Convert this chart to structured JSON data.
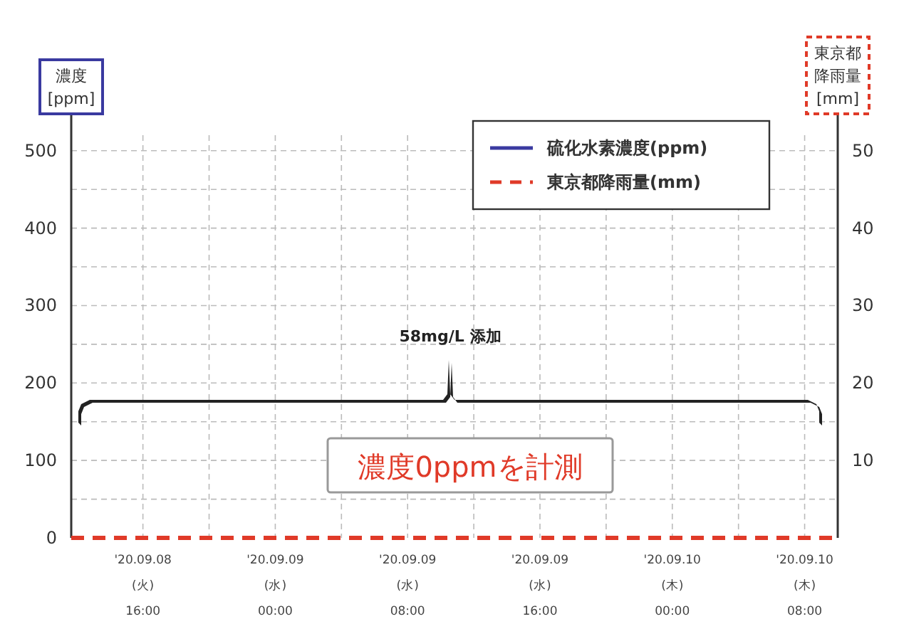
{
  "chart_data": {
    "type": "line",
    "ylabel": "濃度[ppm]",
    "y2label": "東京都降雨量[mm]",
    "x": [
      "2020-09-08T11:40",
      "2020-09-09T00:00",
      "2020-09-09T16:00",
      "2020-09-10T10:00"
    ],
    "series": [
      {
        "name": "硫化水素濃度(ppm)",
        "color": "#3a3aa0",
        "values": [
          null,
          null,
          null,
          null
        ],
        "line_style": "solid"
      },
      {
        "name": "東京都降雨量(mm)",
        "color": "#e03a28",
        "values": [
          0,
          0,
          0,
          0
        ],
        "axis": "y2",
        "line_style": "dashed"
      }
    ],
    "xlim": [
      "2020-09-08T11:40",
      "2020-09-10T10:00"
    ],
    "xticks": [
      {
        "value": "2020-09-08T16:00",
        "label": "'20.09.08\n(火)\n16:00"
      },
      {
        "value": "2020-09-08T20:00",
        "label": null
      },
      {
        "value": "2020-09-09T00:00",
        "label": "'20.09.09\n(水)\n00:00"
      },
      {
        "value": "2020-09-09T04:00",
        "label": null
      },
      {
        "value": "2020-09-09T08:00",
        "label": "'20.09.09\n(水)\n08:00"
      },
      {
        "value": "2020-09-09T12:00",
        "label": null
      },
      {
        "value": "2020-09-09T16:00",
        "label": "'20.09.09\n(水)\n16:00"
      },
      {
        "value": "2020-09-09T20:00",
        "label": null
      },
      {
        "value": "2020-09-10T00:00",
        "label": "'20.09.10\n(木)\n00:00"
      },
      {
        "value": "2020-09-10T04:00",
        "label": null
      },
      {
        "value": "2020-09-10T08:00",
        "label": "'20.09.10\n(木)\n08:00"
      }
    ],
    "ylim": [
      0,
      520
    ],
    "yticks": [
      0,
      {
        "value": 50,
        "label": null
      },
      100,
      {
        "value": 150,
        "label": null
      },
      200,
      {
        "value": 250,
        "label": null
      },
      300,
      {
        "value": 350,
        "label": null
      },
      400,
      {
        "value": 450,
        "label": null
      },
      500
    ],
    "y2lim": [
      0,
      52
    ],
    "y2ticks": [
      10,
      20,
      30,
      40,
      50
    ],
    "grid": true,
    "legend": "top right",
    "annotations": [
      "58mg/L 添加",
      "濃度0ppmを計測"
    ]
  }
}
